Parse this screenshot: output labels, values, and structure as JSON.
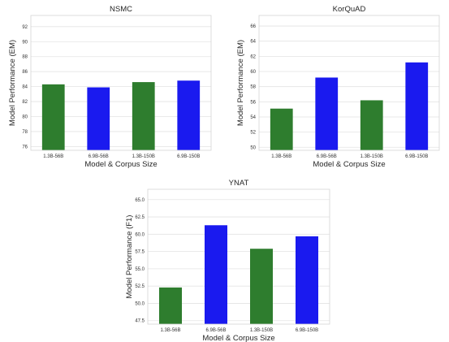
{
  "chart_data": [
    {
      "type": "bar",
      "title": "NSMC",
      "xlabel": "Model & Corpus Size",
      "ylabel": "Model Performance (EM)",
      "categories": [
        "1.3B-56B",
        "6.9B-56B",
        "1.3B-150B",
        "6.9B-150B"
      ],
      "values": [
        84.3,
        83.9,
        84.6,
        84.8
      ],
      "bar_colors": [
        "#2e7d2e",
        "#1a1aef",
        "#2e7d2e",
        "#1a1aef"
      ],
      "ylim": [
        75.5,
        93.5
      ],
      "yticks": [
        76,
        78,
        80,
        82,
        84,
        86,
        88,
        90,
        92
      ],
      "ytick_labels": [
        "76",
        "78",
        "80",
        "82",
        "84",
        "86",
        "88",
        "90",
        "92"
      ],
      "grid": true
    },
    {
      "type": "bar",
      "title": "KorQuAD",
      "xlabel": "Model & Corpus Size",
      "ylabel": "Model Performance (EM)",
      "categories": [
        "1.3B-56B",
        "6.9B-56B",
        "1.3B-150B",
        "6.9B-150B"
      ],
      "values": [
        55.1,
        59.2,
        56.2,
        61.2
      ],
      "bar_colors": [
        "#2e7d2e",
        "#1a1aef",
        "#2e7d2e",
        "#1a1aef"
      ],
      "ylim": [
        49.6,
        67.4
      ],
      "yticks": [
        50,
        52,
        54,
        56,
        58,
        60,
        62,
        64,
        66
      ],
      "ytick_labels": [
        "50",
        "52",
        "54",
        "56",
        "58",
        "60",
        "62",
        "64",
        "66"
      ],
      "grid": true
    },
    {
      "type": "bar",
      "title": "YNAT",
      "xlabel": "Model & Corpus Size",
      "ylabel": "Model Performance (F1)",
      "categories": [
        "1.3B-56B",
        "6.9B-56B",
        "1.3B-150B",
        "6.9B-150B"
      ],
      "values": [
        52.3,
        61.3,
        57.9,
        59.7
      ],
      "bar_colors": [
        "#2e7d2e",
        "#1a1aef",
        "#2e7d2e",
        "#1a1aef"
      ],
      "ylim": [
        47,
        66.5
      ],
      "yticks": [
        47.5,
        50.0,
        52.5,
        55.0,
        57.5,
        60.0,
        62.5,
        65.0
      ],
      "ytick_labels": [
        "47.5",
        "50.0",
        "52.5",
        "55.0",
        "57.5",
        "60.0",
        "62.5",
        "65.0"
      ],
      "grid": true
    }
  ]
}
